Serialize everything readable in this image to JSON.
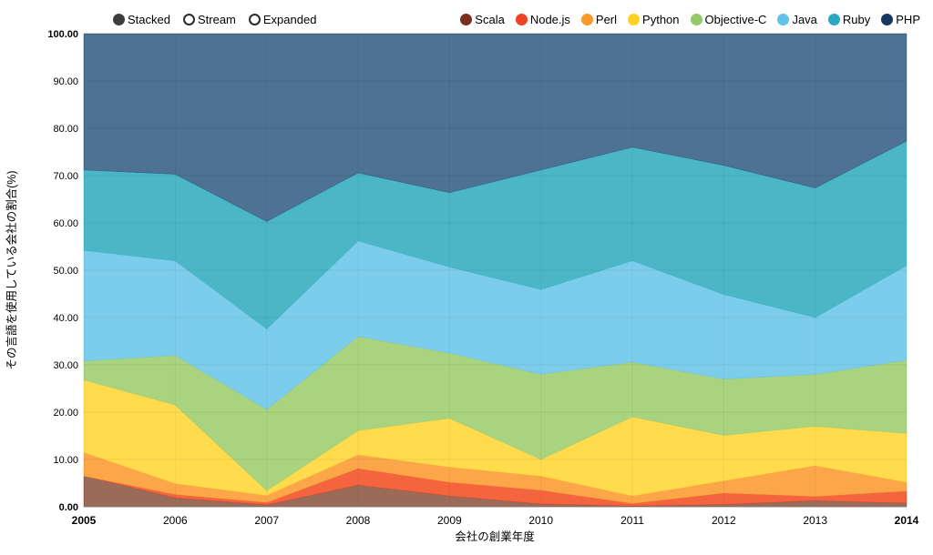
{
  "controls": {
    "items": [
      {
        "label": "Stacked",
        "selected": true
      },
      {
        "label": "Stream",
        "selected": false
      },
      {
        "label": "Expanded",
        "selected": false
      }
    ]
  },
  "legend": {
    "position": "top-right",
    "items": [
      {
        "label": "Scala",
        "color": "#7D2E1D"
      },
      {
        "label": "Node.js",
        "color": "#EF4123"
      },
      {
        "label": "Perl",
        "color": "#F79A28"
      },
      {
        "label": "Python",
        "color": "#FFD226"
      },
      {
        "label": "Objective-C",
        "color": "#94C96A"
      },
      {
        "label": "Java",
        "color": "#5FC2E9"
      },
      {
        "label": "Ruby",
        "color": "#2CA8C2"
      },
      {
        "label": "PHP",
        "color": "#17395D"
      }
    ]
  },
  "chart_data": {
    "type": "area",
    "stacked": true,
    "normalized_percent": true,
    "title": "",
    "xlabel": "会社の創業年度",
    "ylabel": "その言語を使用している会社の割合(%)",
    "x": [
      2005,
      2006,
      2007,
      2008,
      2009,
      2010,
      2011,
      2012,
      2013,
      2014
    ],
    "ylim": [
      0,
      100
    ],
    "grid": true,
    "series": [
      {
        "name": "Scala",
        "color": "#7D2E1D",
        "area_color": "#9A6B58",
        "values": [
          6.5,
          1.9,
          0.4,
          4.6,
          2.3,
          0.6,
          0.2,
          0.5,
          1.3,
          0.8
        ]
      },
      {
        "name": "Node.js",
        "color": "#EF4123",
        "area_color": "#F4653F",
        "values": [
          0.0,
          0.7,
          0.5,
          3.5,
          2.9,
          2.9,
          0.5,
          2.4,
          0.9,
          2.5
        ]
      },
      {
        "name": "Perl",
        "color": "#F79A28",
        "area_color": "#FBA649",
        "values": [
          5.0,
          2.3,
          1.5,
          2.9,
          3.2,
          3.0,
          1.6,
          2.6,
          6.5,
          1.9
        ]
      },
      {
        "name": "Python",
        "color": "#FFD226",
        "area_color": "#FFDB4D",
        "values": [
          15.3,
          16.6,
          1.0,
          5.1,
          10.3,
          3.5,
          16.7,
          9.6,
          8.3,
          10.3
        ]
      },
      {
        "name": "Objective-C",
        "color": "#94C96A",
        "area_color": "#A9D37E",
        "values": [
          4.0,
          10.5,
          17.2,
          19.9,
          13.8,
          18.0,
          11.6,
          11.9,
          11.0,
          15.5
        ]
      },
      {
        "name": "Java",
        "color": "#5FC2E9",
        "area_color": "#7CCDEC",
        "values": [
          23.4,
          20.0,
          17.0,
          20.2,
          18.2,
          17.9,
          21.4,
          17.9,
          12.0,
          20.0
        ]
      },
      {
        "name": "Ruby",
        "color": "#2CA8C2",
        "area_color": "#4BB7C6",
        "values": [
          17.0,
          18.3,
          22.7,
          14.4,
          15.7,
          25.3,
          24.0,
          27.3,
          27.4,
          26.3
        ]
      },
      {
        "name": "PHP",
        "color": "#17395D",
        "area_color": "#4D7294",
        "values": [
          28.8,
          29.7,
          39.7,
          29.4,
          33.6,
          28.8,
          24.0,
          27.8,
          32.6,
          22.7
        ]
      }
    ]
  },
  "axes": {
    "x_ticks": [
      "2005",
      "2006",
      "2007",
      "2008",
      "2009",
      "2010",
      "2011",
      "2012",
      "2013",
      "2014"
    ],
    "y_ticks": [
      "0.00",
      "10.00",
      "20.00",
      "30.00",
      "40.00",
      "50.00",
      "60.00",
      "70.00",
      "80.00",
      "90.00",
      "100.00"
    ]
  }
}
